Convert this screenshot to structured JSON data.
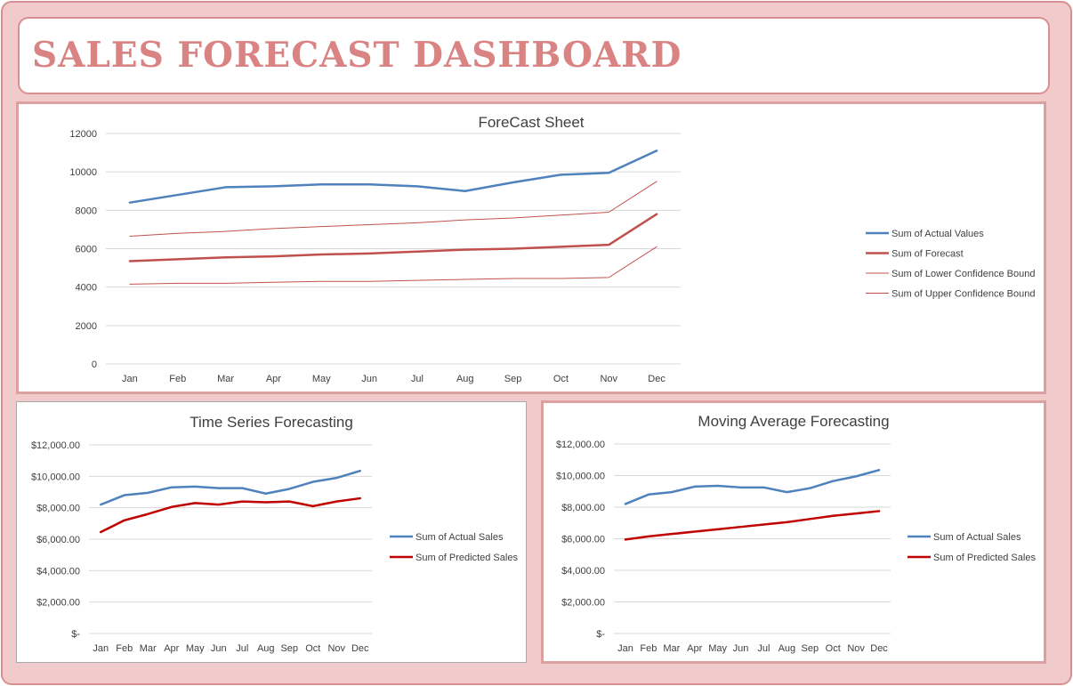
{
  "header": {
    "title": "SALES FORECAST DASHBOARD"
  },
  "colors": {
    "actual": "#4f81bd",
    "forecast": "#c0504d",
    "bound": "#c0504d",
    "predicted": "#c00000",
    "accent": "#d98383"
  },
  "chart_data": [
    {
      "type": "line",
      "title": "ForeCast Sheet",
      "categories": [
        "Jan",
        "Feb",
        "Mar",
        "Apr",
        "May",
        "Jun",
        "Jul",
        "Aug",
        "Sep",
        "Oct",
        "Nov",
        "Dec"
      ],
      "ylim": [
        0,
        12000
      ],
      "yticks": [
        0,
        2000,
        4000,
        6000,
        8000,
        10000,
        12000
      ],
      "yticklabels": [
        "0",
        "2000",
        "4000",
        "6000",
        "8000",
        "10000",
        "12000"
      ],
      "grid": true,
      "legend": "right",
      "series": [
        {
          "name": "Sum of Actual Values",
          "values": [
            8400,
            8800,
            9200,
            9250,
            9350,
            9350,
            9250,
            9000,
            9450,
            9850,
            9950,
            11100
          ]
        },
        {
          "name": "Sum of Forecast",
          "values": [
            5350,
            5450,
            5550,
            5600,
            5700,
            5750,
            5850,
            5950,
            6000,
            6100,
            6200,
            7800
          ]
        },
        {
          "name": "Sum of Lower Confidence Bound",
          "values": [
            4150,
            4200,
            4200,
            4250,
            4300,
            4300,
            4350,
            4400,
            4450,
            4450,
            4500,
            6100
          ]
        },
        {
          "name": "Sum of Upper Confidence Bound",
          "values": [
            6650,
            6800,
            6900,
            7050,
            7150,
            7250,
            7350,
            7500,
            7600,
            7750,
            7900,
            9500
          ]
        }
      ]
    },
    {
      "type": "line",
      "title": "Time Series Forecasting",
      "categories": [
        "Jan",
        "Feb",
        "Mar",
        "Apr",
        "May",
        "Jun",
        "Jul",
        "Aug",
        "Sep",
        "Oct",
        "Nov",
        "Dec"
      ],
      "ylim": [
        0,
        12000
      ],
      "yticks": [
        0,
        2000,
        4000,
        6000,
        8000,
        10000,
        12000
      ],
      "yticklabels": [
        "$-",
        "$2,000.00",
        "$4,000.00",
        "$6,000.00",
        "$8,000.00",
        "$10,000.00",
        "$12,000.00"
      ],
      "grid": true,
      "legend": "right",
      "series": [
        {
          "name": "Sum of Actual Sales",
          "values": [
            8200,
            8800,
            8950,
            9300,
            9350,
            9250,
            9250,
            8900,
            9200,
            9650,
            9900,
            10350
          ]
        },
        {
          "name": "Sum of Predicted Sales",
          "values": [
            6450,
            7200,
            7600,
            8050,
            8300,
            8200,
            8400,
            8350,
            8400,
            8100,
            8400,
            8600
          ]
        }
      ]
    },
    {
      "type": "line",
      "title": "Moving Average Forecasting",
      "categories": [
        "Jan",
        "Feb",
        "Mar",
        "Apr",
        "May",
        "Jun",
        "Jul",
        "Aug",
        "Sep",
        "Oct",
        "Nov",
        "Dec"
      ],
      "ylim": [
        0,
        12000
      ],
      "yticks": [
        0,
        2000,
        4000,
        6000,
        8000,
        10000,
        12000
      ],
      "yticklabels": [
        "$-",
        "$2,000.00",
        "$4,000.00",
        "$6,000.00",
        "$8,000.00",
        "$10,000.00",
        "$12,000.00"
      ],
      "grid": true,
      "legend": "right",
      "series": [
        {
          "name": "Sum of Actual Sales",
          "values": [
            8200,
            8800,
            8950,
            9300,
            9350,
            9250,
            9250,
            8950,
            9200,
            9650,
            9950,
            10350
          ]
        },
        {
          "name": "Sum of Predicted Sales",
          "values": [
            5950,
            6150,
            6300,
            6450,
            6600,
            6750,
            6900,
            7050,
            7250,
            7450,
            7600,
            7750
          ]
        }
      ]
    }
  ]
}
